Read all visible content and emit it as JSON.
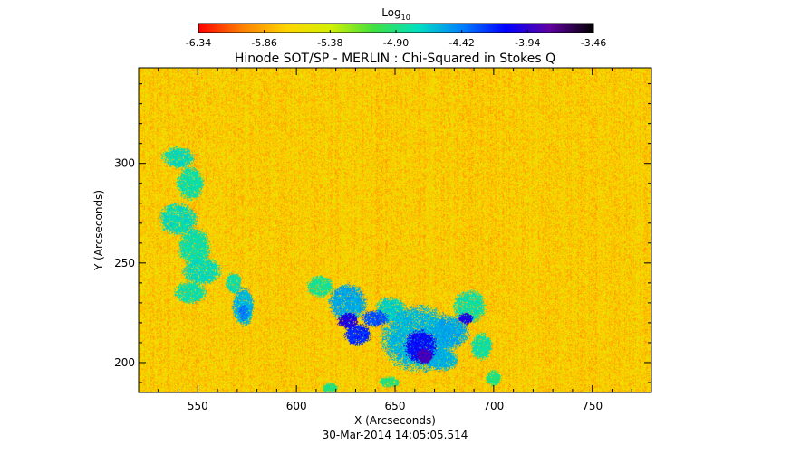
{
  "chart_data": {
    "type": "heatmap",
    "title": "Hinode SOT/SP - MERLIN : Chi-Squared in Stokes Q",
    "xlabel": "X (Arcseconds)",
    "ylabel": "Y (Arcseconds)",
    "timestamp": "30-Mar-2014 14:05:05.514",
    "xlim": [
      520,
      780
    ],
    "ylim": [
      185,
      348
    ],
    "x_ticks": [
      550,
      600,
      650,
      700,
      750
    ],
    "y_ticks": [
      200,
      250,
      300
    ],
    "colorbar": {
      "label_base": "Log",
      "label_sub": "10",
      "range": [
        -6.34,
        -3.46
      ],
      "tick_labels": [
        "-6.34",
        "-5.86",
        "-5.38",
        "-4.90",
        "-4.42",
        "-3.94",
        "-3.46"
      ],
      "colormap": [
        "#ff0000",
        "#ff8000",
        "#ffd400",
        "#d4f000",
        "#40e040",
        "#00e0c0",
        "#0080ff",
        "#0000ff",
        "#6000a0",
        "#000000"
      ]
    },
    "background_level": -5.7,
    "features": [
      {
        "x": 540,
        "y": 303,
        "rx": 6,
        "ry": 4,
        "level": -4.75
      },
      {
        "x": 546,
        "y": 290,
        "rx": 5,
        "ry": 6,
        "level": -4.8
      },
      {
        "x": 540,
        "y": 272,
        "rx": 7,
        "ry": 6,
        "level": -4.75
      },
      {
        "x": 548,
        "y": 258,
        "rx": 6,
        "ry": 7,
        "level": -4.8
      },
      {
        "x": 552,
        "y": 246,
        "rx": 7,
        "ry": 5,
        "level": -4.75
      },
      {
        "x": 546,
        "y": 235,
        "rx": 6,
        "ry": 4,
        "level": -4.8
      },
      {
        "x": 568,
        "y": 240,
        "rx": 3,
        "ry": 4,
        "level": -4.8
      },
      {
        "x": 573,
        "y": 228,
        "rx": 4,
        "ry": 7,
        "level": -4.6
      },
      {
        "x": 573,
        "y": 225,
        "rx": 2,
        "ry": 3,
        "level": -4.4
      },
      {
        "x": 612,
        "y": 238,
        "rx": 5,
        "ry": 4,
        "level": -4.85
      },
      {
        "x": 626,
        "y": 230,
        "rx": 7,
        "ry": 7,
        "level": -4.55
      },
      {
        "x": 626,
        "y": 221,
        "rx": 4,
        "ry": 3,
        "level": -4.0
      },
      {
        "x": 631,
        "y": 214,
        "rx": 5,
        "ry": 4,
        "level": -4.2
      },
      {
        "x": 640,
        "y": 222,
        "rx": 5,
        "ry": 3,
        "level": -4.3
      },
      {
        "x": 648,
        "y": 226,
        "rx": 6,
        "ry": 5,
        "level": -4.7
      },
      {
        "x": 662,
        "y": 212,
        "rx": 14,
        "ry": 12,
        "level": -4.6
      },
      {
        "x": 663,
        "y": 208,
        "rx": 6,
        "ry": 6,
        "level": -4.1
      },
      {
        "x": 665,
        "y": 203,
        "rx": 3,
        "ry": 3,
        "level": -3.85
      },
      {
        "x": 678,
        "y": 215,
        "rx": 7,
        "ry": 6,
        "level": -4.55
      },
      {
        "x": 686,
        "y": 222,
        "rx": 3,
        "ry": 2,
        "level": -4.0
      },
      {
        "x": 688,
        "y": 228,
        "rx": 6,
        "ry": 6,
        "level": -4.8
      },
      {
        "x": 674,
        "y": 201,
        "rx": 6,
        "ry": 4,
        "level": -4.6
      },
      {
        "x": 694,
        "y": 208,
        "rx": 4,
        "ry": 5,
        "level": -4.8
      },
      {
        "x": 700,
        "y": 192,
        "rx": 3,
        "ry": 3,
        "level": -4.9
      },
      {
        "x": 617,
        "y": 187,
        "rx": 3,
        "ry": 2,
        "level": -4.9
      },
      {
        "x": 647,
        "y": 190,
        "rx": 4,
        "ry": 2,
        "level": -4.9
      }
    ]
  }
}
